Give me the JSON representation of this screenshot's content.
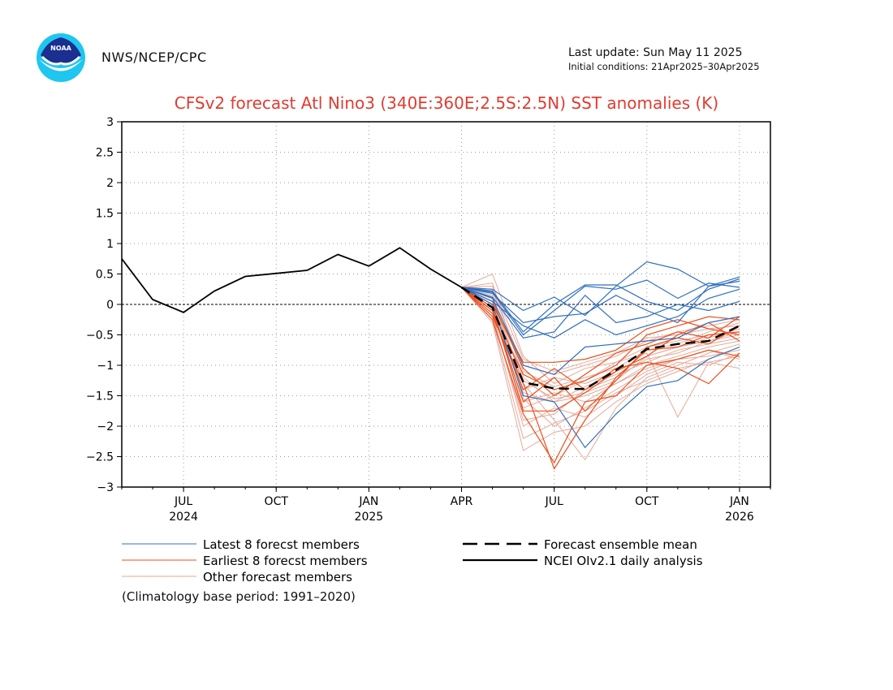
{
  "header": {
    "agency": "NWS/NCEP/CPC",
    "last_update": "Last update: Sun May 11 2025",
    "initial_conditions": "Initial conditions: 21Apr2025–30Apr2025",
    "logo_text": "NOAA"
  },
  "note": "(Climatology base period: 1991–2020)",
  "colors": {
    "title": "#e03c31",
    "latest": "#2f6fc0",
    "earliest": "#e8501e",
    "other": "#e6a99a",
    "observed": "#000000",
    "mean": "#000000"
  },
  "legend": [
    {
      "label": "Latest 8 forecst members",
      "color": "#2f6fc0",
      "style": "thin"
    },
    {
      "label": "Earliest 8 forecst members",
      "color": "#e8501e",
      "style": "thin"
    },
    {
      "label": "Other forecast members",
      "color": "#e6a99a",
      "style": "thin"
    },
    {
      "label": "Forecast ensemble mean",
      "color": "#000000",
      "style": "dashed"
    },
    {
      "label": "NCEI OIv2.1 daily analysis",
      "color": "#000000",
      "style": "solid"
    }
  ],
  "chart_data": {
    "type": "line",
    "title": "CFSv2 forecast Atl Nino3 (340E:360E;2.5S:2.5N) SST anomalies (K)",
    "ylabel": "",
    "xlabel": "",
    "ylim": [
      -3,
      3
    ],
    "yticks": [
      -3,
      -2.5,
      -2,
      -1.5,
      -1,
      -0.5,
      0,
      0.5,
      1,
      1.5,
      2,
      2.5,
      3
    ],
    "ytick_labels": [
      "−3",
      "−2.5",
      "−2",
      "−1.5",
      "−1",
      "−0.5",
      "0",
      "0.5",
      "1",
      "1.5",
      "2",
      "2.5",
      "3"
    ],
    "xlim": [
      "2024-05",
      "2026-02"
    ],
    "xticks": [
      {
        "x": "2024-07",
        "label": "JUL",
        "year": "2024"
      },
      {
        "x": "2024-10",
        "label": "OCT",
        "year": ""
      },
      {
        "x": "2025-01",
        "label": "JAN",
        "year": "2025"
      },
      {
        "x": "2025-04",
        "label": "APR",
        "year": ""
      },
      {
        "x": "2025-07",
        "label": "JUL",
        "year": ""
      },
      {
        "x": "2025-10",
        "label": "OCT",
        "year": ""
      },
      {
        "x": "2026-01",
        "label": "JAN",
        "year": "2026"
      }
    ],
    "grid": true,
    "zero_line": "dashed",
    "observed": {
      "name": "NCEI OIv2.1 daily analysis",
      "x": [
        "2024-05",
        "2024-06",
        "2024-07",
        "2024-08",
        "2024-09",
        "2024-10",
        "2024-11",
        "2024-12",
        "2025-01",
        "2025-02",
        "2025-03",
        "2025-04"
      ],
      "values": [
        0.75,
        0.08,
        -0.13,
        0.22,
        0.46,
        0.51,
        0.56,
        0.82,
        0.63,
        0.93,
        0.58,
        0.28
      ]
    },
    "mean": {
      "name": "Forecast ensemble mean",
      "x": [
        "2025-04",
        "2025-05",
        "2025-06",
        "2025-07",
        "2025-08",
        "2025-09",
        "2025-10",
        "2025-11",
        "2025-12",
        "2026-01"
      ],
      "values": [
        0.28,
        -0.05,
        -1.28,
        -1.38,
        -1.39,
        -1.08,
        -0.73,
        -0.65,
        -0.6,
        -0.35
      ]
    },
    "members_x": [
      "2025-04",
      "2025-05",
      "2025-06",
      "2025-07",
      "2025-08",
      "2025-09",
      "2025-10",
      "2025-11",
      "2025-12",
      "2026-01"
    ],
    "latest_members": [
      [
        0.28,
        0.25,
        -0.1,
        0.12,
        -0.18,
        0.3,
        0.7,
        0.58,
        0.3,
        0.45
      ],
      [
        0.28,
        0.2,
        -0.5,
        -0.1,
        0.3,
        0.25,
        0.4,
        0.1,
        0.35,
        0.28
      ],
      [
        0.28,
        0.12,
        -0.55,
        -0.45,
        0.15,
        -0.3,
        -0.2,
        0.0,
        -0.1,
        0.05
      ],
      [
        0.28,
        0.18,
        -0.3,
        -0.2,
        -0.15,
        0.15,
        -0.1,
        -0.3,
        0.3,
        0.38
      ],
      [
        0.28,
        0.05,
        -0.35,
        -0.55,
        -0.25,
        -0.5,
        -0.35,
        -0.2,
        0.1,
        0.25
      ],
      [
        0.28,
        0.22,
        -0.45,
        0.0,
        0.32,
        0.32,
        0.05,
        -0.1,
        0.25,
        0.42
      ],
      [
        0.28,
        0.1,
        -1.0,
        -1.15,
        -0.7,
        -0.65,
        -0.6,
        -0.55,
        -0.3,
        -0.2
      ],
      [
        0.28,
        0.0,
        -1.5,
        -1.6,
        -2.35,
        -1.8,
        -1.35,
        -1.25,
        -0.9,
        -0.7
      ]
    ],
    "earliest_members": [
      [
        0.28,
        -0.2,
        -1.3,
        -2.7,
        -1.9,
        -1.2,
        -0.75,
        -0.7,
        -0.5,
        -0.45
      ],
      [
        0.28,
        -0.1,
        -1.15,
        -1.4,
        -1.25,
        -1.0,
        -0.5,
        -0.35,
        -0.2,
        -0.25
      ],
      [
        0.28,
        -0.05,
        -1.75,
        -1.75,
        -1.45,
        -1.1,
        -0.85,
        -0.5,
        -0.3,
        -0.6
      ],
      [
        0.28,
        0.0,
        -0.95,
        -0.95,
        -0.9,
        -0.75,
        -0.4,
        -0.25,
        -0.4,
        -0.5
      ],
      [
        0.28,
        -0.15,
        -1.4,
        -1.05,
        -1.4,
        -1.05,
        -0.95,
        -1.05,
        -1.3,
        -0.8
      ],
      [
        0.28,
        -0.1,
        -1.6,
        -1.2,
        -1.75,
        -1.25,
        -0.7,
        -0.55,
        -0.65,
        -0.35
      ],
      [
        0.28,
        -0.25,
        -1.8,
        -2.6,
        -1.6,
        -1.5,
        -1.0,
        -0.9,
        -0.75,
        -0.85
      ],
      [
        0.28,
        0.05,
        -1.05,
        -1.5,
        -1.15,
        -0.8,
        -0.65,
        -0.45,
        -0.55,
        -0.2
      ]
    ],
    "other_members": [
      [
        0.28,
        0.5,
        -0.85,
        -1.3,
        -1.05,
        -0.95,
        -0.7,
        -0.6,
        -0.5,
        -0.45
      ],
      [
        0.28,
        0.35,
        -1.2,
        -1.6,
        -1.5,
        -1.3,
        -1.0,
        -0.85,
        -0.7,
        -0.6
      ],
      [
        0.28,
        0.15,
        -1.55,
        -2.0,
        -1.7,
        -1.4,
        -1.1,
        -0.9,
        -0.85,
        -0.75
      ],
      [
        0.28,
        0.0,
        -1.4,
        -1.2,
        -1.3,
        -1.1,
        -0.85,
        -0.7,
        -0.55,
        -0.4
      ],
      [
        0.28,
        -0.2,
        -1.9,
        -1.8,
        -1.4,
        -1.2,
        -0.9,
        -0.8,
        -0.6,
        -0.5
      ],
      [
        0.28,
        -0.3,
        -2.4,
        -2.1,
        -2.0,
        -1.6,
        -1.3,
        -1.1,
        -0.9,
        -0.7
      ],
      [
        0.28,
        -0.1,
        -1.7,
        -1.5,
        -1.25,
        -0.95,
        -0.8,
        -1.85,
        -0.95,
        -1.05
      ],
      [
        0.28,
        0.2,
        -1.0,
        -1.15,
        -1.0,
        -0.85,
        -0.6,
        -0.45,
        -0.35,
        -0.25
      ],
      [
        0.28,
        0.1,
        -1.3,
        -1.9,
        -2.55,
        -1.7,
        -1.2,
        -1.0,
        -0.8,
        -0.65
      ],
      [
        0.28,
        -0.05,
        -1.6,
        -1.45,
        -1.6,
        -1.3,
        -1.05,
        -0.9,
        -0.75,
        -0.9
      ],
      [
        0.28,
        0.25,
        -1.1,
        -1.35,
        -1.2,
        -1.05,
        -0.75,
        -0.65,
        -0.45,
        -0.3
      ],
      [
        0.28,
        -0.15,
        -2.0,
        -1.7,
        -1.85,
        -1.5,
        -1.15,
        -0.95,
        -1.0,
        -0.8
      ],
      [
        0.28,
        0.05,
        -1.45,
        -1.6,
        -1.35,
        -1.15,
        -0.95,
        -0.75,
        -0.65,
        -0.55
      ],
      [
        0.28,
        0.3,
        -0.9,
        -1.1,
        -0.95,
        -0.8,
        -0.55,
        -0.5,
        -0.4,
        -0.35
      ],
      [
        0.28,
        -0.25,
        -2.2,
        -1.95,
        -1.75,
        -1.45,
        -1.25,
        -1.05,
        -0.95,
        -0.85
      ],
      [
        0.28,
        0.1,
        -1.25,
        -1.55,
        -1.45,
        -1.25,
        -0.85,
        -0.7,
        -0.6,
        -0.45
      ]
    ]
  }
}
